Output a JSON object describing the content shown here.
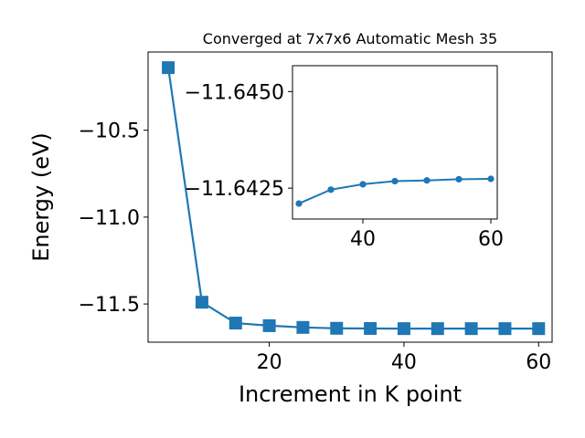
{
  "chart_data": [
    {
      "type": "line",
      "title": "Converged at 7x7x6 Automatic Mesh 35",
      "xlabel": "Increment in K point",
      "ylabel": "Energy (eV)",
      "xlim": [
        2,
        62
      ],
      "ylim": [
        -11.72,
        -10.05
      ],
      "xticks": [
        20,
        40,
        60
      ],
      "yticks": [
        -10.5,
        -11.0,
        -11.5
      ],
      "ytick_labels": [
        "−10.5",
        "−11.0",
        "−11.5"
      ],
      "marker": "square",
      "color": "#1f77b4",
      "series": [
        {
          "x": [
            5,
            10,
            15,
            20,
            25,
            30,
            35,
            40,
            45,
            50,
            55,
            60
          ],
          "y": [
            -10.14,
            -11.49,
            -11.61,
            -11.625,
            -11.635,
            -11.64,
            -11.641,
            -11.642,
            -11.642,
            -11.642,
            -11.642,
            -11.642
          ]
        }
      ]
    },
    {
      "type": "line",
      "inset": true,
      "xlim": [
        29,
        61
      ],
      "ylim": [
        -11.6417,
        -11.64567
      ],
      "xticks": [
        40,
        60
      ],
      "yticks": [
        -11.645,
        -11.6425
      ],
      "ytick_labels": [
        "−11.6450",
        "−11.6425"
      ],
      "marker": "circle",
      "color": "#1f77b4",
      "series": [
        {
          "x": [
            30,
            35,
            40,
            45,
            50,
            55,
            60
          ],
          "y": [
            -11.6421,
            -11.64246,
            -11.6426,
            -11.64268,
            -11.6427,
            -11.64273,
            -11.64274
          ]
        }
      ]
    }
  ]
}
